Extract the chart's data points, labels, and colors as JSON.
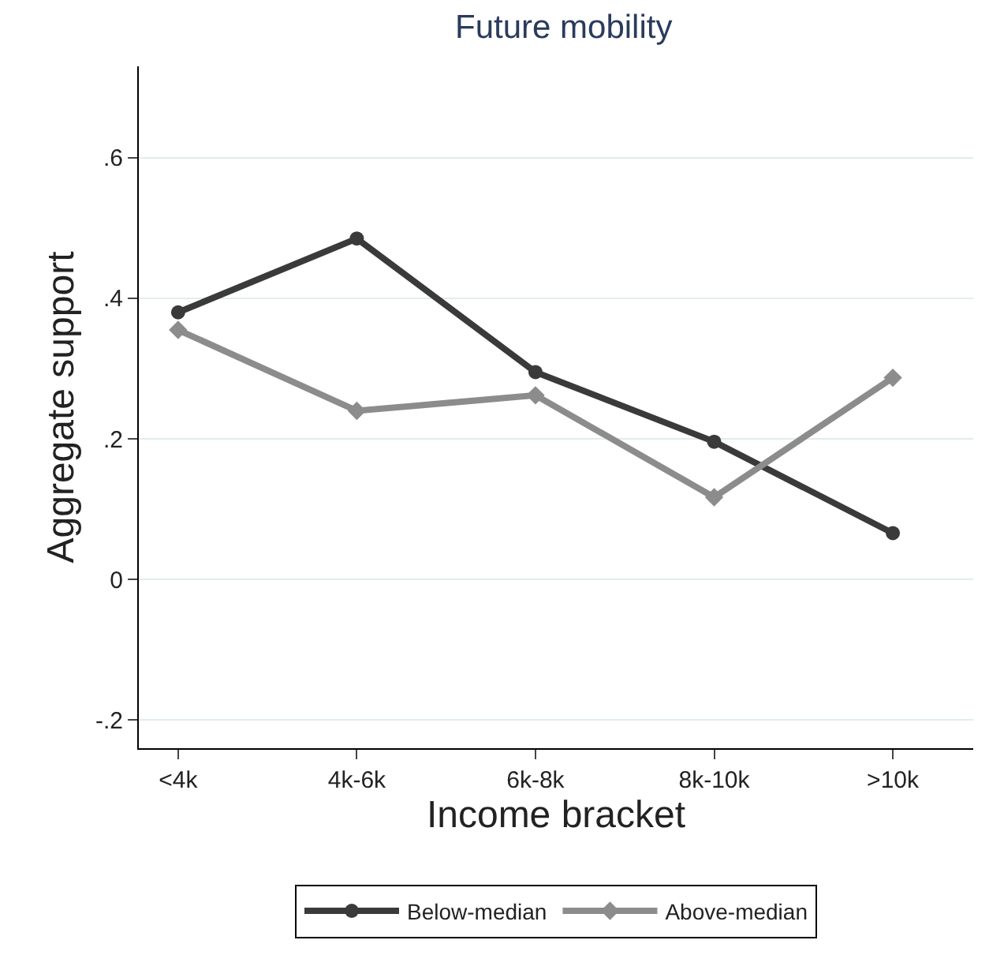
{
  "chart_data": {
    "type": "line",
    "title": "Future mobility",
    "xlabel": "Income bracket",
    "ylabel": "Aggregate support",
    "categories": [
      "<4k",
      "4k-6k",
      "6k-8k",
      "8k-10k",
      ">10k"
    ],
    "series": [
      {
        "name": "Below-median",
        "color": "#3a3a3a",
        "marker": "circle",
        "values": [
          0.38,
          0.485,
          0.295,
          0.196,
          0.066
        ]
      },
      {
        "name": "Above-median",
        "color": "#8c8c8c",
        "marker": "diamond",
        "values": [
          0.355,
          0.24,
          0.262,
          0.117,
          0.287
        ]
      }
    ],
    "ylim": [
      -0.24,
      0.73
    ],
    "yticks": [
      {
        "value": -0.2,
        "label": "-.2"
      },
      0,
      {
        "value": 0.2,
        "label": ".2"
      },
      {
        "value": 0.4,
        "label": ".4"
      },
      {
        "value": 0.6,
        "label": ".6"
      }
    ],
    "grid": "y",
    "legend": "bottom"
  }
}
